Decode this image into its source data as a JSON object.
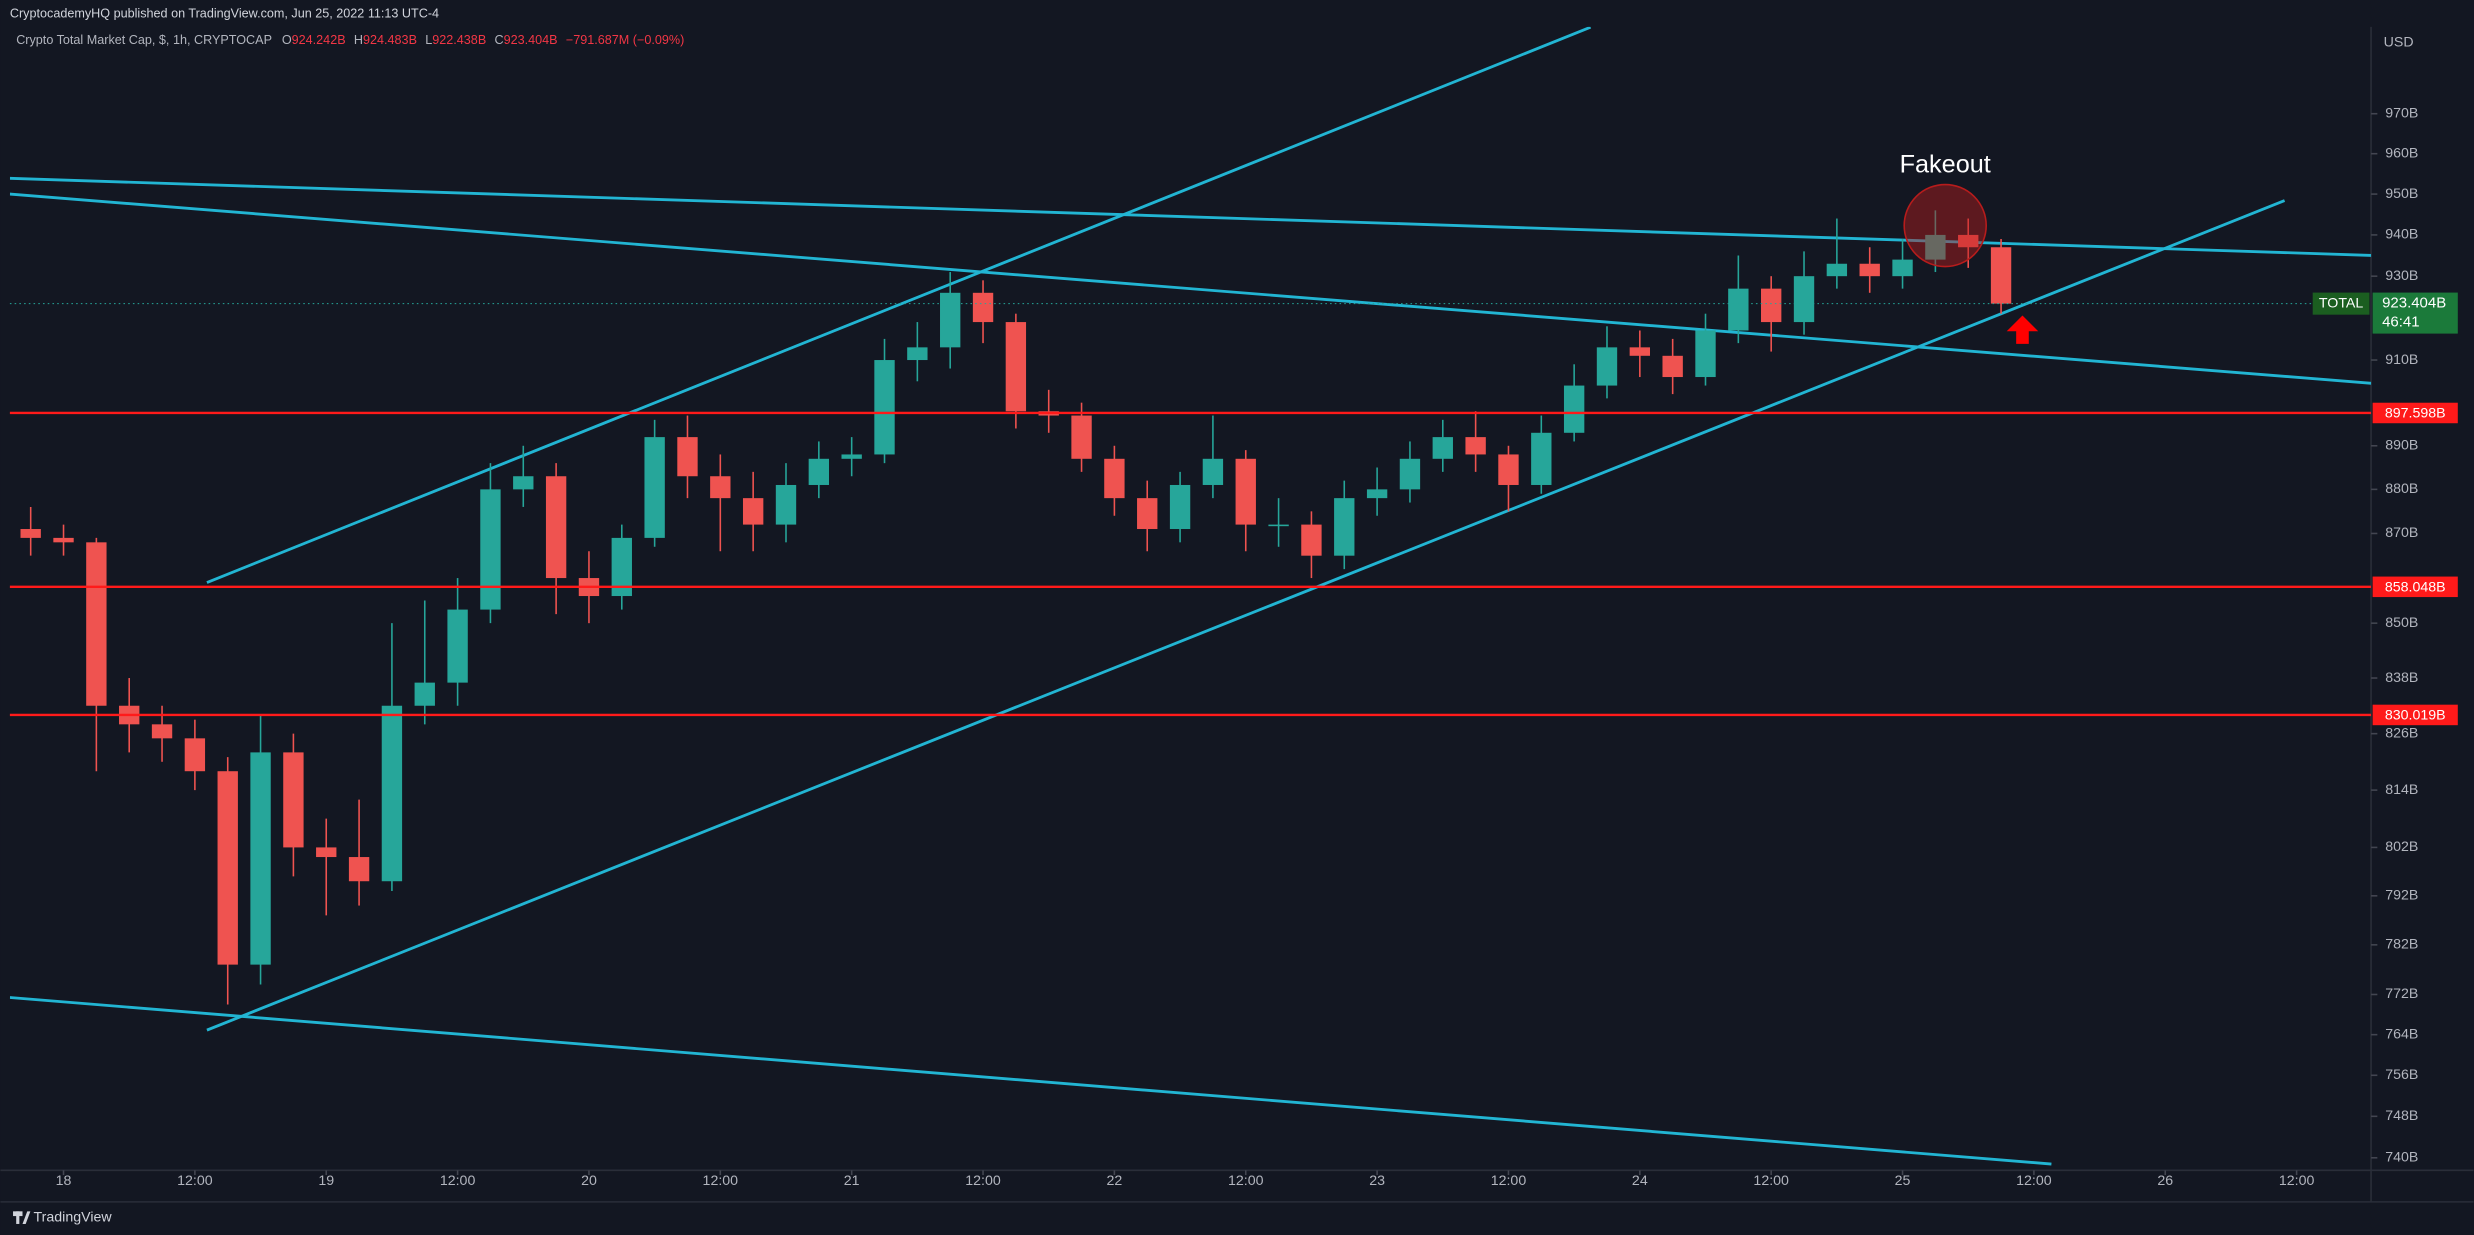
{
  "chart_data": {
    "type": "candlestick",
    "publisher": "CryptocademyHQ published on TradingView.com, Jun 25, 2022 11:13 UTC-4",
    "title": "Crypto Total Market Cap, $, 1h, CRYPTOCAP",
    "ohlc_legend": [
      {
        "label": "O",
        "value": "924.242B"
      },
      {
        "label": "H",
        "value": "924.483B"
      },
      {
        "label": "L",
        "value": "922.438B"
      },
      {
        "label": "C",
        "value": "923.404B"
      }
    ],
    "change": "−791.687M (−0.09%)",
    "currency": "USD",
    "annotation": "Fakeout",
    "footer": "TradingView",
    "symbol": "TOTAL",
    "last_price": {
      "value": 923.404,
      "label": "923.404B"
    },
    "countdown": "46:41",
    "log_scale": true,
    "up_color": "#26a69a",
    "down_color": "#ef5350",
    "level_color": "#ff1a1a",
    "trendline_color": "#22b5d3",
    "xlim": [
      -4.9,
      210.8
    ],
    "ylim": [
      737.6,
      992.1
    ],
    "xticks": [
      {
        "value": 0,
        "label": "18"
      },
      {
        "value": 12,
        "label": "12:00"
      },
      {
        "value": 24,
        "label": "19"
      },
      {
        "value": 36,
        "label": "12:00"
      },
      {
        "value": 48,
        "label": "20"
      },
      {
        "value": 60,
        "label": "12:00"
      },
      {
        "value": 72,
        "label": "21"
      },
      {
        "value": 84,
        "label": "12:00"
      },
      {
        "value": 96,
        "label": "22"
      },
      {
        "value": 108,
        "label": "12:00"
      },
      {
        "value": 120,
        "label": "23"
      },
      {
        "value": 132,
        "label": "12:00"
      },
      {
        "value": 144,
        "label": "24"
      },
      {
        "value": 156,
        "label": "12:00"
      },
      {
        "value": 168,
        "label": "25"
      },
      {
        "value": 180,
        "label": "12:00"
      },
      {
        "value": 192,
        "label": "26"
      },
      {
        "value": 204,
        "label": "12:00"
      }
    ],
    "yticks": [
      {
        "value": 970,
        "label": "970B"
      },
      {
        "value": 960,
        "label": "960B"
      },
      {
        "value": 950,
        "label": "950B"
      },
      {
        "value": 940,
        "label": "940B"
      },
      {
        "value": 930,
        "label": "930B"
      },
      {
        "value": 910,
        "label": "910B"
      },
      {
        "value": 890,
        "label": "890B"
      },
      {
        "value": 880,
        "label": "880B"
      },
      {
        "value": 870,
        "label": "870B"
      },
      {
        "value": 850,
        "label": "850B"
      },
      {
        "value": 838,
        "label": "838B"
      },
      {
        "value": 826,
        "label": "826B"
      },
      {
        "value": 814,
        "label": "814B"
      },
      {
        "value": 802,
        "label": "802B"
      },
      {
        "value": 792,
        "label": "792B"
      },
      {
        "value": 782,
        "label": "782B"
      },
      {
        "value": 772,
        "label": "772B"
      },
      {
        "value": 764,
        "label": "764B"
      },
      {
        "value": 756,
        "label": "756B"
      },
      {
        "value": 748,
        "label": "748B"
      },
      {
        "value": 740,
        "label": "740B"
      }
    ],
    "levels": [
      {
        "value": 897.598,
        "label": "897.598B"
      },
      {
        "value": 858.048,
        "label": "858.048B"
      },
      {
        "value": 830.019,
        "label": "830.019B"
      }
    ],
    "trendlines": [
      {
        "x": [
          13.1,
          139.5
        ],
        "y": [
          859,
          992
        ]
      },
      {
        "x": [
          -4.9,
          211
        ],
        "y": [
          953.9,
          935
        ]
      },
      {
        "x": [
          -4.9,
          211
        ],
        "y": [
          950,
          904.5
        ]
      },
      {
        "x": [
          13.1,
          202.9
        ],
        "y": [
          764.9,
          948.4
        ]
      },
      {
        "x": [
          -4.9,
          181.6
        ],
        "y": [
          771.4,
          738.8
        ]
      }
    ],
    "x": [
      -3,
      0,
      3,
      6,
      9,
      12,
      15,
      18,
      21,
      24,
      27,
      30,
      33,
      36,
      39,
      42,
      45,
      48,
      51,
      54,
      57,
      60,
      63,
      66,
      69,
      72,
      75,
      78,
      81,
      84,
      87,
      90,
      93,
      96,
      99,
      102,
      105,
      108,
      111,
      114,
      117,
      120,
      123,
      126,
      129,
      132,
      135,
      138,
      141,
      144,
      147,
      150,
      153,
      156,
      159,
      162,
      165,
      168,
      171,
      174,
      177
    ],
    "open": [
      871,
      869,
      868,
      832,
      828,
      825,
      818,
      778,
      822,
      802,
      800,
      795,
      832,
      837,
      853,
      880,
      883,
      860,
      856,
      869,
      892,
      883,
      878,
      872,
      881,
      887,
      888,
      910,
      913,
      926,
      919,
      898,
      897,
      887,
      878,
      871,
      881,
      887,
      872,
      872,
      865,
      878,
      880,
      887,
      892,
      888,
      881,
      893,
      904,
      913,
      911,
      906,
      917,
      927,
      919,
      930,
      933,
      930,
      934,
      940,
      937
    ],
    "high": [
      876,
      872,
      869,
      838,
      832,
      829,
      821,
      830,
      826,
      808,
      812,
      850,
      855,
      860,
      886,
      890,
      886,
      866,
      872,
      896,
      897,
      888,
      884,
      886,
      891,
      892,
      915,
      919,
      931,
      929,
      921,
      903,
      900,
      890,
      882,
      884,
      897,
      889,
      878,
      875,
      882,
      885,
      891,
      896,
      898,
      890,
      897,
      909,
      918,
      917,
      915,
      921,
      935,
      930,
      936,
      944,
      937,
      939,
      946,
      944,
      939
    ],
    "low": [
      865,
      865,
      818,
      822,
      820,
      814,
      770,
      774,
      796,
      788,
      790,
      793,
      828,
      832,
      850,
      876,
      852,
      850,
      853,
      867,
      878,
      866,
      866,
      868,
      878,
      883,
      886,
      905,
      908,
      914,
      894,
      893,
      884,
      874,
      866,
      868,
      878,
      866,
      867,
      860,
      862,
      874,
      877,
      884,
      884,
      875,
      879,
      891,
      901,
      906,
      902,
      904,
      914,
      912,
      916,
      927,
      926,
      927,
      931,
      932,
      921
    ],
    "close": [
      869,
      868,
      832,
      828,
      825,
      818,
      778,
      822,
      802,
      800,
      795,
      832,
      837,
      853,
      880,
      883,
      860,
      856,
      869,
      892,
      883,
      878,
      872,
      881,
      887,
      888,
      910,
      913,
      926,
      919,
      898,
      897,
      887,
      878,
      871,
      881,
      887,
      872,
      872,
      865,
      878,
      880,
      887,
      892,
      888,
      881,
      893,
      904,
      913,
      911,
      906,
      917,
      927,
      919,
      930,
      933,
      930,
      934,
      940,
      937,
      923.404
    ]
  }
}
